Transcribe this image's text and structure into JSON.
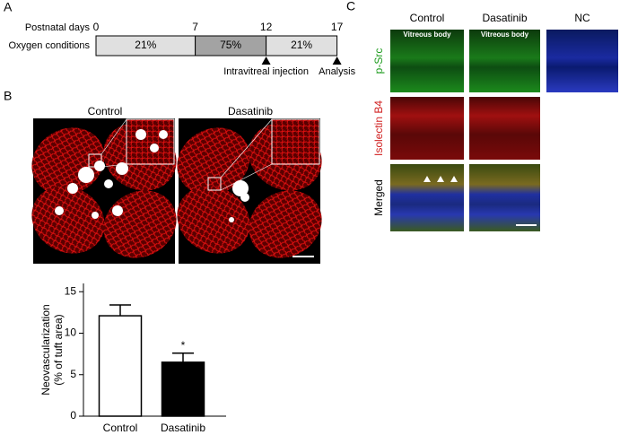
{
  "panels": {
    "a": "A",
    "b": "B",
    "c": "C"
  },
  "timeline": {
    "row_labels": [
      "Postnatal days",
      "Oxygen conditions"
    ],
    "days": [
      0,
      7,
      12,
      17
    ],
    "segments": [
      "21%",
      "75%",
      "21%"
    ],
    "events": [
      "Intravitreal injection",
      "Analysis"
    ]
  },
  "flatmounts": {
    "labels": [
      "Control",
      "Dasatinib"
    ]
  },
  "chart_data": {
    "type": "bar",
    "y_label": [
      "Neovascularization",
      "(% of tuft area)"
    ],
    "categories": [
      "Control",
      "Dasatinib"
    ],
    "values": [
      12.1,
      6.5
    ],
    "errors": [
      1.3,
      1.1
    ],
    "colors": [
      "#ffffff",
      "#000000"
    ],
    "value_annotations": [
      null,
      "*"
    ],
    "ylim": [
      0,
      16
    ],
    "yticks": [
      0,
      5,
      10,
      15
    ]
  },
  "staining": {
    "columns": [
      "Control",
      "Dasatinib",
      "NC"
    ],
    "rows": [
      "p-Src",
      "Isolectin B4",
      "Merged"
    ],
    "region_label": "Vitreous body"
  }
}
